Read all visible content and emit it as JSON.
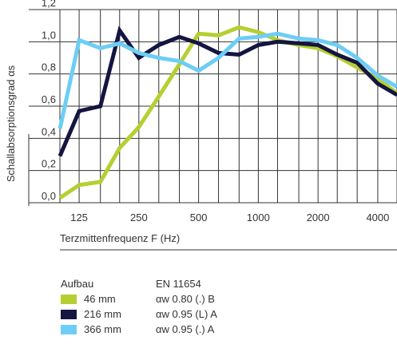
{
  "chart_data": {
    "type": "line",
    "title": "",
    "xlabel": "Terzmittenfrequenz F (Hz)",
    "ylabel": "Schallabsorptionsgrad αs",
    "x_scale": "log",
    "x": [
      100,
      125,
      160,
      200,
      250,
      315,
      400,
      500,
      630,
      800,
      1000,
      1250,
      1600,
      2000,
      2500,
      3150,
      4000,
      5000
    ],
    "x_ticks": [
      125,
      250,
      500,
      1000,
      2000,
      4000
    ],
    "x_tick_labels": [
      "125",
      "250",
      "500",
      "1000",
      "2000",
      "4000"
    ],
    "y_ticks": [
      0.0,
      0.2,
      0.4,
      0.6,
      0.8,
      1.0,
      1.2
    ],
    "y_tick_labels": [
      "0,0",
      "0,2",
      "0,4",
      "0,6",
      "0,8",
      "1,0",
      "1,2"
    ],
    "ylim": [
      0,
      1.2
    ],
    "grid": true,
    "series": [
      {
        "name": "46 mm",
        "color": "#b5cf32",
        "values": [
          0.03,
          0.11,
          0.13,
          0.34,
          0.47,
          0.66,
          0.86,
          1.05,
          1.04,
          1.09,
          1.06,
          1.01,
          0.98,
          0.96,
          0.91,
          0.84,
          0.77,
          0.68
        ]
      },
      {
        "name": "216 mm",
        "color": "#141540",
        "values": [
          0.29,
          0.57,
          0.6,
          1.07,
          0.9,
          0.98,
          1.03,
          0.99,
          0.93,
          0.92,
          0.98,
          1.0,
          0.99,
          0.98,
          0.92,
          0.87,
          0.74,
          0.67
        ]
      },
      {
        "name": "366 mm",
        "color": "#6dcef5",
        "values": [
          0.46,
          1.01,
          0.96,
          0.99,
          0.93,
          0.9,
          0.88,
          0.82,
          0.9,
          1.02,
          1.03,
          1.05,
          1.02,
          1.01,
          0.98,
          0.9,
          0.79,
          0.72
        ]
      }
    ]
  },
  "legend": {
    "header_left": "Aufbau",
    "header_right": "EN 11654",
    "rows": [
      {
        "label": "46 mm",
        "rating": "αw 0.80 (.) B",
        "color": "#b5cf32"
      },
      {
        "label": "216 mm",
        "rating": "αw 0.95 (L) A",
        "color": "#141540"
      },
      {
        "label": "366 mm",
        "rating": "αw 0.95 (.) A",
        "color": "#6dcef5"
      }
    ]
  }
}
